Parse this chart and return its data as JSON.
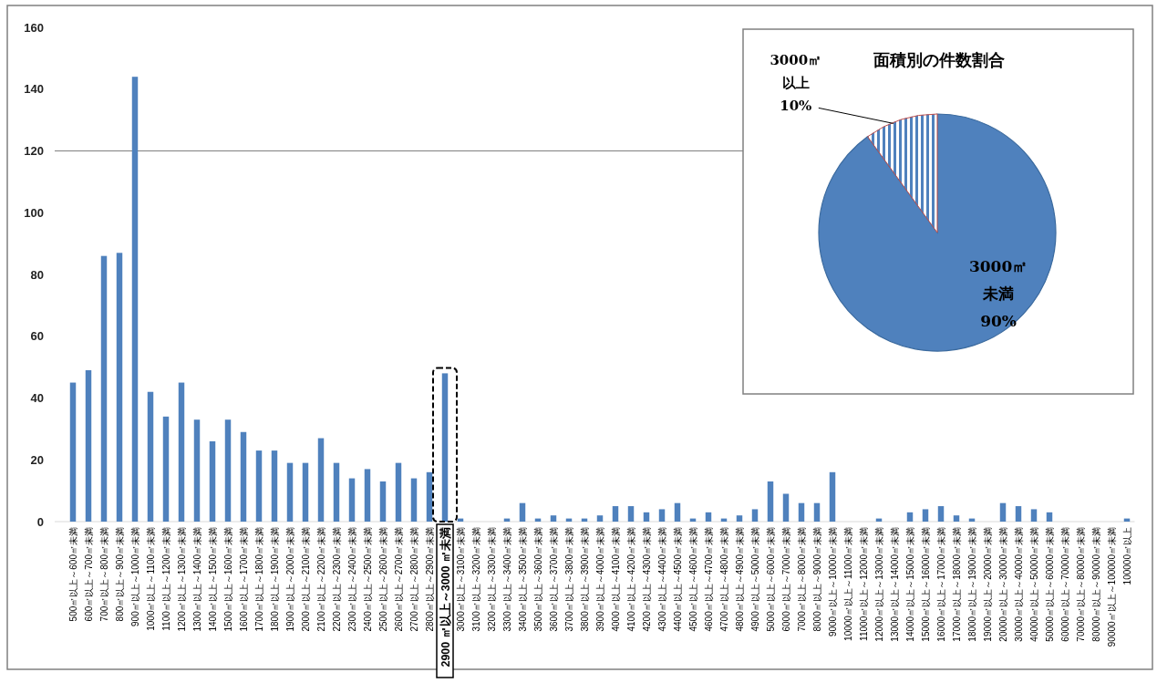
{
  "chart_data": [
    {
      "type": "bar",
      "categories": [
        "500㎡以上～600㎡未満",
        "600㎡以上～700㎡未満",
        "700㎡以上～800㎡未満",
        "800㎡以上～900㎡未満",
        "900㎡以上～1000㎡未満",
        "1000㎡以上～1100㎡未満",
        "1100㎡以上～1200㎡未満",
        "1200㎡以上～1300㎡未満",
        "1300㎡以上～1400㎡未満",
        "1400㎡以上～1500㎡未満",
        "1500㎡以上～1600㎡未満",
        "1600㎡以上～1700㎡未満",
        "1700㎡以上～1800㎡未満",
        "1800㎡以上～1900㎡未満",
        "1900㎡以上～2000㎡未満",
        "2000㎡以上～2100㎡未満",
        "2100㎡以上～2200㎡未満",
        "2200㎡以上～2300㎡未満",
        "2300㎡以上～2400㎡未満",
        "2400㎡以上～2500㎡未満",
        "2500㎡以上～2600㎡未満",
        "2600㎡以上～2700㎡未満",
        "2700㎡以上～2800㎡未満",
        "2800㎡以上～2900㎡未満",
        "2900 ㎡以上～3000 ㎡未満",
        "3000㎡以上～3100㎡未満",
        "3100㎡以上～3200㎡未満",
        "3200㎡以上～3300㎡未満",
        "3300㎡以上～3400㎡未満",
        "3400㎡以上～3500㎡未満",
        "3500㎡以上～3600㎡未満",
        "3600㎡以上～3700㎡未満",
        "3700㎡以上～3800㎡未満",
        "3800㎡以上～3900㎡未満",
        "3900㎡以上～4000㎡未満",
        "4000㎡以上～4100㎡未満",
        "4100㎡以上～4200㎡未満",
        "4200㎡以上～4300㎡未満",
        "4300㎡以上～4400㎡未満",
        "4400㎡以上～4500㎡未満",
        "4500㎡以上～4600㎡未満",
        "4600㎡以上～4700㎡未満",
        "4700㎡以上～4800㎡未満",
        "4800㎡以上～4900㎡未満",
        "4900㎡以上～5000㎡未満",
        "5000㎡以上～6000㎡未満",
        "6000㎡以上～7000㎡未満",
        "7000㎡以上～8000㎡未満",
        "8000㎡以上～9000㎡未満",
        "9000㎡以上～10000㎡未満",
        "10000㎡以上～11000㎡未満",
        "11000㎡以上～12000㎡未満",
        "12000㎡以上～13000㎡未満",
        "13000㎡以上～14000㎡未満",
        "14000㎡以上～15000㎡未満",
        "15000㎡以上～16000㎡未満",
        "16000㎡以上～17000㎡未満",
        "17000㎡以上～18000㎡未満",
        "18000㎡以上～19000㎡未満",
        "19000㎡以上～20000㎡未満",
        "20000㎡以上～30000㎡未満",
        "30000㎡以上～40000㎡未満",
        "40000㎡以上～50000㎡未満",
        "50000㎡以上～60000㎡未満",
        "60000㎡以上～70000㎡未満",
        "70000㎡以上～80000㎡未満",
        "80000㎡以上～90000㎡未満",
        "90000㎡以上～100000㎡未満",
        "100000㎡以上"
      ],
      "values": [
        45,
        49,
        86,
        87,
        144,
        42,
        34,
        45,
        33,
        26,
        33,
        29,
        23,
        23,
        19,
        19,
        27,
        19,
        14,
        17,
        13,
        19,
        14,
        16,
        48,
        1,
        0,
        0,
        1,
        6,
        1,
        2,
        1,
        1,
        2,
        5,
        5,
        3,
        4,
        6,
        1,
        3,
        1,
        2,
        4,
        13,
        9,
        6,
        6,
        16,
        0,
        0,
        1,
        0,
        3,
        4,
        5,
        2,
        1,
        0,
        6,
        5,
        4,
        3,
        0,
        0,
        0,
        0,
        1
      ],
      "color": "#4f81bd",
      "ylim": [
        0,
        160
      ],
      "yticks": [
        0,
        20,
        40,
        60,
        80,
        100,
        120,
        140,
        160
      ],
      "ref_lines": [
        {
          "axis": "y",
          "value": 120,
          "color": "#808080"
        }
      ]
    },
    {
      "type": "pie",
      "title": "面積別の件数割合",
      "categories": [
        "3000㎡未満",
        "3000㎡以上"
      ],
      "values": [
        90,
        10
      ],
      "colors": [
        "#4f81bd",
        "#4f81bd"
      ],
      "value_labels": [
        "90%",
        "10%"
      ]
    }
  ]
}
